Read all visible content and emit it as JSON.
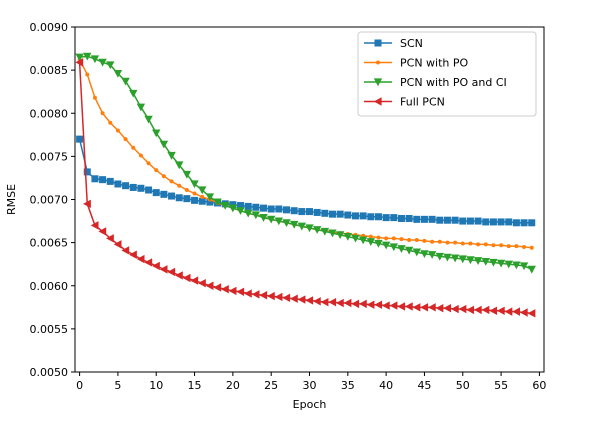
{
  "chart_data": {
    "type": "line",
    "xlabel": "Epoch",
    "ylabel": "RMSE",
    "xlim": [
      -0.6,
      60.6
    ],
    "ylim": [
      0.005,
      0.009
    ],
    "xticks": [
      0,
      5,
      10,
      15,
      20,
      25,
      30,
      35,
      40,
      45,
      50,
      55,
      60
    ],
    "yticks": [
      "0.0050",
      "0.0055",
      "0.0060",
      "0.0065",
      "0.0070",
      "0.0075",
      "0.0080",
      "0.0085",
      "0.0090"
    ],
    "grid": false,
    "legend_position": "top-right",
    "series": [
      {
        "name": "SCN",
        "color": "#1f77b4",
        "marker": "square",
        "values": [
          0.0077,
          0.00732,
          0.00724,
          0.00723,
          0.00721,
          0.00718,
          0.00716,
          0.00714,
          0.00713,
          0.00711,
          0.00708,
          0.00706,
          0.00704,
          0.00702,
          0.00701,
          0.00699,
          0.00698,
          0.00697,
          0.00696,
          0.00695,
          0.00694,
          0.00693,
          0.00692,
          0.00691,
          0.0069,
          0.00689,
          0.00689,
          0.00688,
          0.00687,
          0.00686,
          0.00686,
          0.00685,
          0.00684,
          0.00683,
          0.00683,
          0.00682,
          0.00681,
          0.00681,
          0.0068,
          0.0068,
          0.00679,
          0.00679,
          0.00678,
          0.00678,
          0.00677,
          0.00677,
          0.00677,
          0.00676,
          0.00676,
          0.00676,
          0.00675,
          0.00675,
          0.00675,
          0.00674,
          0.00674,
          0.00674,
          0.00674,
          0.00673,
          0.00673,
          0.00673
        ]
      },
      {
        "name": "PCN with PO",
        "color": "#ff7f0e",
        "marker": "point",
        "values": [
          0.00862,
          0.00845,
          0.00818,
          0.008,
          0.00789,
          0.0078,
          0.0077,
          0.0076,
          0.00751,
          0.00742,
          0.00734,
          0.00727,
          0.00721,
          0.00716,
          0.00711,
          0.00707,
          0.00703,
          0.007,
          0.00696,
          0.00693,
          0.0069,
          0.00687,
          0.00684,
          0.00682,
          0.0068,
          0.00677,
          0.00675,
          0.00673,
          0.00671,
          0.00669,
          0.00667,
          0.00665,
          0.00664,
          0.00662,
          0.00661,
          0.0066,
          0.00659,
          0.00658,
          0.00657,
          0.00656,
          0.00655,
          0.00655,
          0.00654,
          0.00653,
          0.00653,
          0.00652,
          0.00651,
          0.00651,
          0.0065,
          0.0065,
          0.00649,
          0.00649,
          0.00648,
          0.00648,
          0.00647,
          0.00647,
          0.00646,
          0.00646,
          0.00645,
          0.00644
        ]
      },
      {
        "name": "PCN with PO and CI",
        "color": "#2ca02c",
        "marker": "triangle-down",
        "values": [
          0.00865,
          0.00866,
          0.00863,
          0.00859,
          0.00856,
          0.00846,
          0.00837,
          0.00823,
          0.00807,
          0.00793,
          0.00777,
          0.00764,
          0.00751,
          0.0074,
          0.00729,
          0.00718,
          0.00711,
          0.00703,
          0.00697,
          0.00693,
          0.0069,
          0.00687,
          0.00684,
          0.00682,
          0.00679,
          0.00677,
          0.00675,
          0.00673,
          0.00671,
          0.00669,
          0.00667,
          0.00665,
          0.00663,
          0.00661,
          0.00659,
          0.00657,
          0.00655,
          0.00653,
          0.00651,
          0.00649,
          0.00647,
          0.00645,
          0.00643,
          0.00641,
          0.00639,
          0.00637,
          0.00636,
          0.00634,
          0.00633,
          0.00632,
          0.00631,
          0.0063,
          0.00629,
          0.00628,
          0.00627,
          0.00626,
          0.00625,
          0.00624,
          0.00623,
          0.00619
        ]
      },
      {
        "name": "Full PCN",
        "color": "#d62728",
        "marker": "triangle-left",
        "values": [
          0.00859,
          0.00695,
          0.0067,
          0.00663,
          0.00655,
          0.00648,
          0.00641,
          0.00636,
          0.00631,
          0.00627,
          0.00623,
          0.00619,
          0.00616,
          0.00612,
          0.00609,
          0.00606,
          0.00603,
          0.006,
          0.00598,
          0.00596,
          0.00594,
          0.00593,
          0.00591,
          0.0059,
          0.00589,
          0.00588,
          0.00587,
          0.00586,
          0.00585,
          0.00584,
          0.00583,
          0.00582,
          0.00581,
          0.00581,
          0.0058,
          0.0058,
          0.00579,
          0.00579,
          0.00578,
          0.00578,
          0.00577,
          0.00577,
          0.00576,
          0.00576,
          0.00575,
          0.00575,
          0.00575,
          0.00574,
          0.00574,
          0.00573,
          0.00573,
          0.00572,
          0.00572,
          0.00572,
          0.00571,
          0.00571,
          0.0057,
          0.0057,
          0.00569,
          0.00568
        ]
      }
    ]
  }
}
